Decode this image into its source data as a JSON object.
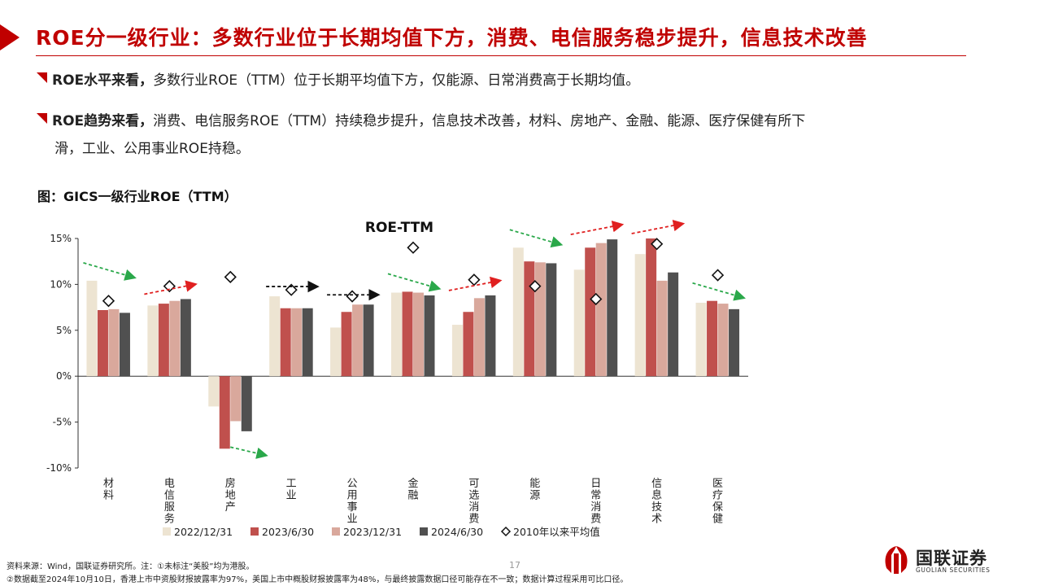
{
  "header": {
    "title": "ROE分一级行业：多数行业位于长期均值下方，消费、电信服务稳步提升，信息技术改善"
  },
  "bullets": [
    {
      "bold": "ROE水平来看，",
      "text": "多数行业ROE（TTM）位于长期平均值下方，仅能源、日常消费高于长期均值。",
      "cont": ""
    },
    {
      "bold": "ROE趋势来看，",
      "text": "消费、电信服务ROE（TTM）持续稳步提升，信息技术改善，材料、房地产、金融、能源、医疗保健有所下",
      "cont": "滑，工业、公用事业ROE持稳。"
    }
  ],
  "figure_caption": "图：GICS一级行业ROE（TTM）",
  "chart_data": {
    "type": "bar",
    "title": "ROE-TTM",
    "categories": [
      "材料",
      "电信服务",
      "房地产",
      "工业",
      "公用事业",
      "金融",
      "可选消费",
      "能源",
      "日常消费",
      "信息技术",
      "医疗保健"
    ],
    "series": [
      {
        "name": "2022/12/31",
        "color": "#ede4d2",
        "values": [
          10.4,
          7.7,
          -3.3,
          8.7,
          5.3,
          9.1,
          5.6,
          14.0,
          11.6,
          13.3,
          8.0
        ]
      },
      {
        "name": "2023/6/30",
        "color": "#c0504d",
        "values": [
          7.2,
          7.9,
          -7.9,
          7.4,
          7.0,
          9.2,
          7.0,
          12.5,
          14.0,
          15.0,
          8.2
        ]
      },
      {
        "name": "2023/12/31",
        "color": "#d9a89c",
        "values": [
          7.3,
          8.2,
          -4.9,
          7.4,
          7.8,
          9.1,
          8.5,
          12.4,
          14.5,
          10.4,
          7.9
        ]
      },
      {
        "name": "2024/6/30",
        "color": "#505050",
        "values": [
          6.9,
          8.4,
          -6.0,
          7.4,
          7.8,
          8.8,
          8.8,
          12.3,
          14.9,
          11.3,
          7.3
        ]
      }
    ],
    "markers": {
      "name": "2010年以来平均值",
      "values": [
        8.2,
        9.8,
        10.8,
        9.4,
        8.7,
        14.0,
        10.5,
        9.8,
        8.4,
        14.4,
        11.0
      ]
    },
    "trends": [
      "down",
      "up",
      "down",
      "flat",
      "flat",
      "down",
      "up",
      "down",
      "up",
      "up",
      "down"
    ],
    "trend_colors": {
      "up": "#e02020",
      "down": "#2aa84a",
      "flat": "#111111"
    },
    "ylim": [
      -10,
      15
    ],
    "yticks": [
      -10,
      -5,
      0,
      5,
      10,
      15
    ],
    "ytick_labels": [
      "-10%",
      "-5%",
      "0%",
      "5%",
      "10%",
      "15%"
    ],
    "legend_position": "bottom",
    "grid": false
  },
  "footnotes": [
    "资料来源：Wind，国联证券研究所。注：①未标注“美股”均为港股。",
    "②数据截至2024年10月10日，香港上市中资股财报披露率为97%，美国上市中概股财报披露率为48%，与最终披露数据口径可能存在不一致；数据计算过程采用可比口径。"
  ],
  "page_number": "17",
  "logo": {
    "name": "国联证券",
    "en": "GUOLIAN SECURITIES"
  }
}
